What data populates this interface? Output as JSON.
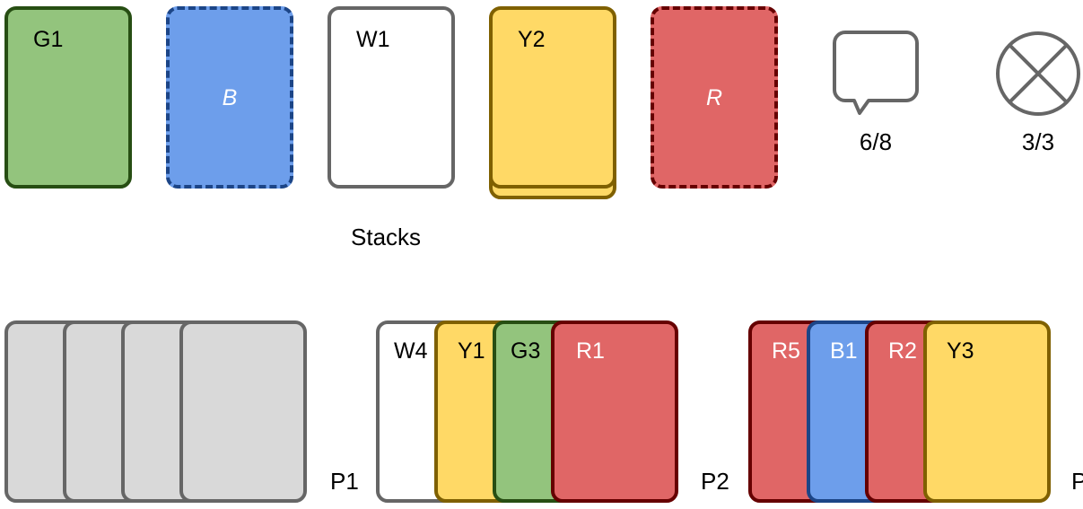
{
  "colors": {
    "green_fill": "#93c47d",
    "green_border": "#274e13",
    "blue_fill": "#6d9eeb",
    "blue_border": "#1c4587",
    "white_fill": "#ffffff",
    "gray_border": "#666666",
    "yellow_fill": "#ffd966",
    "yellow_border": "#7f6000",
    "red_fill": "#e06666",
    "red_border": "#660000",
    "hidden_fill": "#d9d9d9"
  },
  "stacks": {
    "caption": "Stacks",
    "cards": [
      {
        "label": "G1",
        "color": "green",
        "state": "played"
      },
      {
        "label": "B",
        "color": "blue",
        "state": "empty"
      },
      {
        "label": "W1",
        "color": "white",
        "state": "played"
      },
      {
        "label": "Y2",
        "color": "yellow",
        "state": "played"
      },
      {
        "label": "R",
        "color": "red",
        "state": "empty"
      }
    ]
  },
  "counters": {
    "hints": {
      "icon": "speech-bubble-icon",
      "text": "6/8"
    },
    "fuses": {
      "icon": "crossed-circle-icon",
      "text": "3/3"
    }
  },
  "players": [
    {
      "name": "P1",
      "cards": [
        {
          "label": ""
        },
        {
          "label": ""
        },
        {
          "label": ""
        },
        {
          "label": ""
        }
      ]
    },
    {
      "name": "P2",
      "cards": [
        {
          "label": "W4",
          "color": "white"
        },
        {
          "label": "Y1",
          "color": "yellow"
        },
        {
          "label": "G3",
          "color": "green"
        },
        {
          "label": "R1",
          "color": "red"
        }
      ]
    },
    {
      "name": "P",
      "cards": [
        {
          "label": "R5",
          "color": "red"
        },
        {
          "label": "B1",
          "color": "blue"
        },
        {
          "label": "R2",
          "color": "red"
        },
        {
          "label": "Y3",
          "color": "yellow"
        }
      ]
    }
  ]
}
